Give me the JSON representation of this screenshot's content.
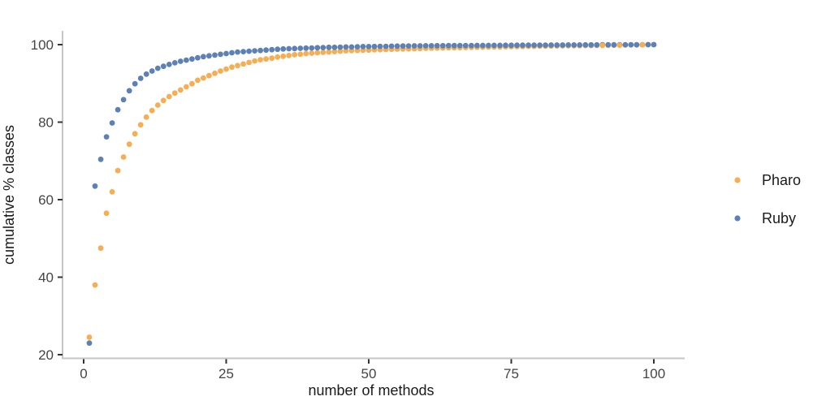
{
  "chart_data": {
    "type": "scatter",
    "title": "",
    "xlabel": "number of methods",
    "ylabel": "cumulative % classes",
    "x_ticks": [
      "0",
      "25",
      "50",
      "75",
      "100"
    ],
    "y_ticks": [
      "20",
      "40",
      "60",
      "80",
      "100"
    ],
    "xlim": [
      -4,
      106
    ],
    "ylim": [
      19,
      103.5
    ],
    "grid": false,
    "legend_position": "right",
    "marker": "circle",
    "x": [
      1,
      2,
      3,
      4,
      5,
      6,
      7,
      8,
      9,
      10,
      11,
      12,
      13,
      14,
      15,
      16,
      17,
      18,
      19,
      20,
      21,
      22,
      23,
      24,
      25,
      26,
      27,
      28,
      29,
      30,
      31,
      32,
      33,
      34,
      35,
      36,
      37,
      38,
      39,
      40,
      41,
      42,
      43,
      44,
      45,
      46,
      47,
      48,
      49,
      50,
      51,
      52,
      53,
      54,
      55,
      56,
      57,
      58,
      59,
      60,
      61,
      62,
      63,
      64,
      65,
      66,
      67,
      68,
      69,
      70,
      71,
      72,
      73,
      74,
      75,
      76,
      77,
      78,
      79,
      80,
      81,
      82,
      83,
      84,
      85,
      86,
      87,
      88,
      89,
      90,
      91,
      92,
      93,
      94,
      95,
      96,
      97,
      98,
      99,
      100
    ],
    "series": [
      {
        "name": "Pharo",
        "color": "#F5AE53",
        "values": [
          24.5,
          38.0,
          47.5,
          56.5,
          62.0,
          67.5,
          71.0,
          74.3,
          77.0,
          79.3,
          81.3,
          83.0,
          84.4,
          85.6,
          86.6,
          87.5,
          88.3,
          89.1,
          89.9,
          90.8,
          91.4,
          92.0,
          92.6,
          93.2,
          93.7,
          94.2,
          94.6,
          95.0,
          95.4,
          95.8,
          96.1,
          96.3,
          96.5,
          96.8,
          97.0,
          97.2,
          97.4,
          97.5,
          97.7,
          97.8,
          97.9,
          98.0,
          98.1,
          98.2,
          98.3,
          98.4,
          98.45,
          98.5,
          98.55,
          98.6,
          98.65,
          98.7,
          98.75,
          98.8,
          98.85,
          98.9,
          98.92,
          98.96,
          99.0,
          99.05,
          99.1,
          99.12,
          99.15,
          99.18,
          99.2,
          99.23,
          99.26,
          99.3,
          99.32,
          99.35,
          99.38,
          99.4,
          99.42,
          99.45,
          99.47,
          99.5,
          99.52,
          99.55,
          99.57,
          99.6,
          99.62,
          99.64,
          99.66,
          99.68,
          99.7,
          99.72,
          99.74,
          99.76,
          99.78,
          99.8,
          99.82,
          99.84,
          99.86,
          99.88,
          99.9,
          99.92,
          99.94,
          99.96,
          99.98,
          100.0
        ]
      },
      {
        "name": "Ruby",
        "color": "#5E81B5",
        "values": [
          23.0,
          63.5,
          70.4,
          76.2,
          79.8,
          83.2,
          85.8,
          88.1,
          89.9,
          91.3,
          92.4,
          93.2,
          93.9,
          94.4,
          94.9,
          95.3,
          95.7,
          96.0,
          96.3,
          96.6,
          96.9,
          97.1,
          97.3,
          97.5,
          97.7,
          97.9,
          98.1,
          98.2,
          98.3,
          98.4,
          98.5,
          98.6,
          98.7,
          98.8,
          98.9,
          98.95,
          99.0,
          99.05,
          99.1,
          99.15,
          99.2,
          99.25,
          99.3,
          99.3,
          99.35,
          99.4,
          99.4,
          99.45,
          99.5,
          99.5,
          99.52,
          99.55,
          99.57,
          99.6,
          99.62,
          99.64,
          99.66,
          99.68,
          99.69,
          99.7,
          99.71,
          99.72,
          99.73,
          99.74,
          99.75,
          99.76,
          99.77,
          99.78,
          99.79,
          99.8,
          99.8,
          99.81,
          99.82,
          99.83,
          99.84,
          99.85,
          99.85,
          99.86,
          99.87,
          99.88,
          99.88,
          99.89,
          99.9,
          99.9,
          99.91,
          99.92,
          99.92,
          99.93,
          99.94,
          99.94,
          99.95,
          99.95,
          99.96,
          99.96,
          99.97,
          99.97,
          99.98,
          99.98,
          99.99,
          100.0
        ]
      }
    ],
    "pharo_points_drawn_on_top_x": [
      91,
      94,
      98
    ],
    "colors": {
      "axis_line": "#C6C6C6",
      "tick_mark": "#333333",
      "tick_label": "#454545",
      "text": "#1a1a1a",
      "background": "#ffffff"
    }
  }
}
